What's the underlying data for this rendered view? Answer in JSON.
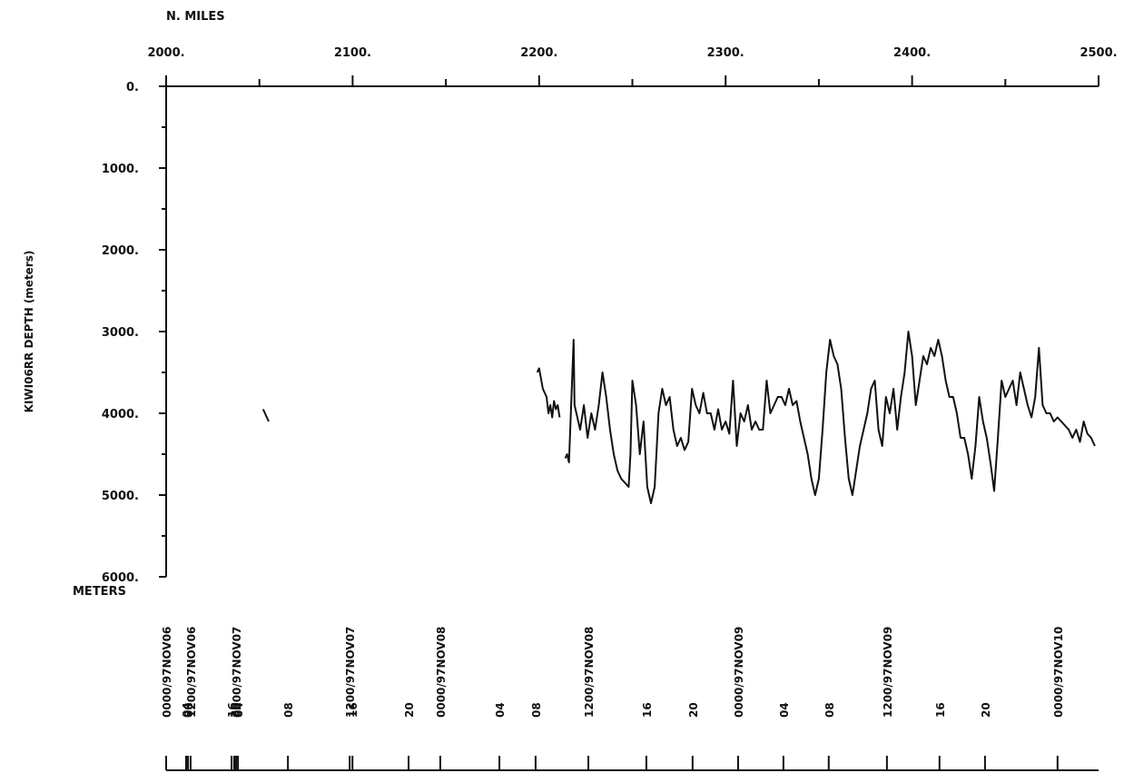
{
  "chart_data": {
    "type": "line",
    "xlabel": "N. MILES",
    "ylabel": "KIWI06RR   DEPTH  (meters)",
    "yunit": "METERS",
    "xlim": [
      2000,
      2500
    ],
    "ylim": [
      0,
      6000
    ],
    "y_inverted": true,
    "xticks": [
      {
        "value": 2000,
        "label": "2000."
      },
      {
        "value": 2100,
        "label": "2100."
      },
      {
        "value": 2200,
        "label": "2200."
      },
      {
        "value": 2300,
        "label": "2300."
      },
      {
        "value": 2400,
        "label": "2400."
      },
      {
        "value": 2500,
        "label": "2500."
      }
    ],
    "xminorticks": [
      2050,
      2150,
      2250,
      2350,
      2450
    ],
    "yticks": [
      {
        "value": 0,
        "label": "0."
      },
      {
        "value": 1000,
        "label": "1000."
      },
      {
        "value": 2000,
        "label": "2000."
      },
      {
        "value": 3000,
        "label": "3000."
      },
      {
        "value": 4000,
        "label": "4000."
      },
      {
        "value": 5000,
        "label": "5000."
      },
      {
        "value": 6000,
        "label": "6000."
      }
    ],
    "yminorticks": [
      500,
      1500,
      2500,
      3500,
      4500,
      5500
    ],
    "time_ticks": [
      {
        "value": 2000,
        "label": "0000/97NOV06"
      },
      {
        "value": 2010.7,
        "label": "04"
      },
      {
        "value": 2011.7,
        "label": "08"
      },
      {
        "value": 2013.1,
        "label": "1200/97NOV06"
      },
      {
        "value": 2035.1,
        "label": "16"
      },
      {
        "value": 2036.5,
        "label": "20"
      },
      {
        "value": 2037.5,
        "label": "0000/97NOV07"
      },
      {
        "value": 2038.5,
        "label": "04"
      },
      {
        "value": 2065.3,
        "label": "08"
      },
      {
        "value": 2098.4,
        "label": "1200/97NOV07"
      },
      {
        "value": 2099.9,
        "label": "16"
      },
      {
        "value": 2130,
        "label": "20"
      },
      {
        "value": 2147,
        "label": "0000/97NOV08"
      },
      {
        "value": 2178.7,
        "label": "04"
      },
      {
        "value": 2198.1,
        "label": "08"
      },
      {
        "value": 2226.4,
        "label": "1200/97NOV08"
      },
      {
        "value": 2257.5,
        "label": "16"
      },
      {
        "value": 2282.3,
        "label": "20"
      },
      {
        "value": 2306.7,
        "label": "0000/97NOV09"
      },
      {
        "value": 2331,
        "label": "04"
      },
      {
        "value": 2355.3,
        "label": "08"
      },
      {
        "value": 2386.5,
        "label": "1200/97NOV09"
      },
      {
        "value": 2414.7,
        "label": "16"
      },
      {
        "value": 2439.1,
        "label": "20"
      },
      {
        "value": 2478,
        "label": "0000/97NOV10"
      }
    ],
    "series": [
      {
        "name": "KIWI06RR",
        "color": "#111111",
        "x": [
          2052,
          2054,
          2055,
          null,
          2199,
          2200,
          2202,
          2204,
          2205,
          2206,
          2207,
          2208,
          2209,
          2210,
          2211,
          null,
          2214,
          2215,
          2216,
          2218.5,
          2219,
          2220,
          2222,
          2224,
          2226,
          2228,
          2230,
          2232,
          2234,
          2236,
          2238,
          2240,
          2242,
          2244,
          2246,
          2248,
          2249,
          2250,
          2252,
          2254,
          2256,
          2258,
          2260,
          2262,
          2264,
          2266,
          2268,
          2270,
          2272,
          2274,
          2276,
          2278,
          2280,
          2282,
          2284,
          2286,
          2288,
          2290,
          2292,
          2294,
          2296,
          2298,
          2300,
          2302,
          2304,
          2306,
          2308,
          2310,
          2312,
          2314,
          2316,
          2318,
          2320,
          2322,
          2324,
          2326,
          2328,
          2330,
          2332,
          2334,
          2336,
          2338,
          2340,
          2342,
          2344,
          2346,
          2348,
          2350,
          2352,
          2354,
          2356,
          2358,
          2360,
          2362,
          2364,
          2366,
          2368,
          2370,
          2372,
          2374,
          2376,
          2378,
          2380,
          2382,
          2384,
          2386,
          2388,
          2390,
          2392,
          2394,
          2396,
          2398,
          2400,
          2402,
          2404,
          2406,
          2408,
          2410,
          2412,
          2414,
          2416,
          2418,
          2420,
          2422,
          2424,
          2426,
          2428,
          2430,
          2432,
          2434,
          2436,
          2438,
          2440,
          2442,
          2444,
          2446,
          2448,
          2450,
          2452,
          2454,
          2456,
          2458,
          2460,
          2462,
          2464,
          2466,
          2468,
          2470,
          2472,
          2474,
          2476,
          2478,
          2480,
          2482,
          2484,
          2486,
          2488,
          2490,
          2492,
          2494,
          2496,
          2498
        ],
        "values": [
          3950,
          4050,
          4100,
          null,
          3500,
          3450,
          3700,
          3800,
          4000,
          3900,
          4050,
          3850,
          3950,
          3900,
          4050,
          null,
          4550,
          4500,
          4600,
          3100,
          3900,
          4000,
          4200,
          3900,
          4300,
          4000,
          4200,
          3900,
          3500,
          3800,
          4200,
          4500,
          4700,
          4800,
          4850,
          4900,
          4500,
          3600,
          3900,
          4500,
          4100,
          4900,
          5100,
          4900,
          4000,
          3700,
          3900,
          3800,
          4200,
          4400,
          4300,
          4450,
          4350,
          3700,
          3900,
          4000,
          3750,
          4000,
          4000,
          4200,
          3950,
          4200,
          4100,
          4250,
          3600,
          4400,
          4000,
          4100,
          3900,
          4200,
          4100,
          4200,
          4200,
          3600,
          4000,
          3900,
          3800,
          3800,
          3900,
          3700,
          3900,
          3850,
          4100,
          4300,
          4500,
          4800,
          5000,
          4800,
          4200,
          3500,
          3100,
          3300,
          3400,
          3700,
          4300,
          4800,
          5000,
          4700,
          4400,
          4200,
          4000,
          3700,
          3600,
          4200,
          4400,
          3800,
          4000,
          3700,
          4200,
          3800,
          3500,
          3000,
          3300,
          3900,
          3600,
          3300,
          3400,
          3200,
          3300,
          3100,
          3300,
          3600,
          3800,
          3800,
          4000,
          4300,
          4300,
          4500,
          4800,
          4400,
          3800,
          4100,
          4300,
          4600,
          4950,
          4300,
          3600,
          3800,
          3700,
          3600,
          3900,
          3500,
          3700,
          3900,
          4050,
          3800,
          3200,
          3900,
          4000,
          4000,
          4100,
          4050,
          4100,
          4150,
          4200,
          4300,
          4200,
          4350,
          4100,
          4250,
          4300,
          4400
        ]
      }
    ]
  }
}
